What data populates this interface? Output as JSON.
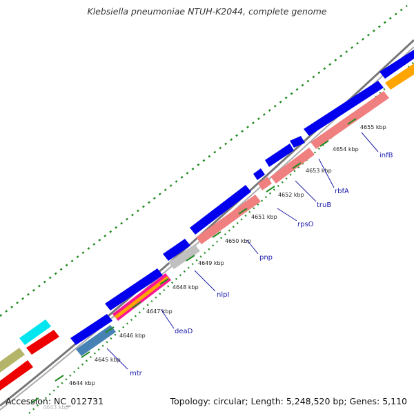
{
  "title": "Klebsiella pneumoniae NTUH-K2044, complete genome",
  "footer": {
    "accession_label": "Accession:",
    "accession": "NC_012731",
    "topology_label": "Topology:",
    "topology": "circular",
    "length_label": "Length:",
    "length": "5,248,520 bp",
    "genes_label": "Genes:",
    "genes": "5,110"
  },
  "kbp_ticks": [
    "4643 kbp",
    "4644 kbp",
    "4645 kbp",
    "4646 kbp",
    "4647 kbp",
    "4648 kbp",
    "4649 kbp",
    "4650 kbp",
    "4651 kbp",
    "4652 kbp",
    "4653 kbp",
    "4654 kbp",
    "4655 kbp"
  ],
  "gene_labels": [
    "mtr",
    "deaD",
    "nlpI",
    "pnp",
    "rpsO",
    "truB",
    "rbfA",
    "infB"
  ],
  "colors": {
    "forward_cds": "#0000ee",
    "reverse_cds": "#f08080",
    "backbone": "#888888",
    "gc_dots": "#228b22",
    "label": "#1a1aaa",
    "cyan": "#00e5ee",
    "red": "#ee0000",
    "olive": "#b5b56a",
    "steelblue": "#4682b4",
    "orange": "#ffa500",
    "grey": "#c0c0c0",
    "magenta": "#ff1493"
  }
}
